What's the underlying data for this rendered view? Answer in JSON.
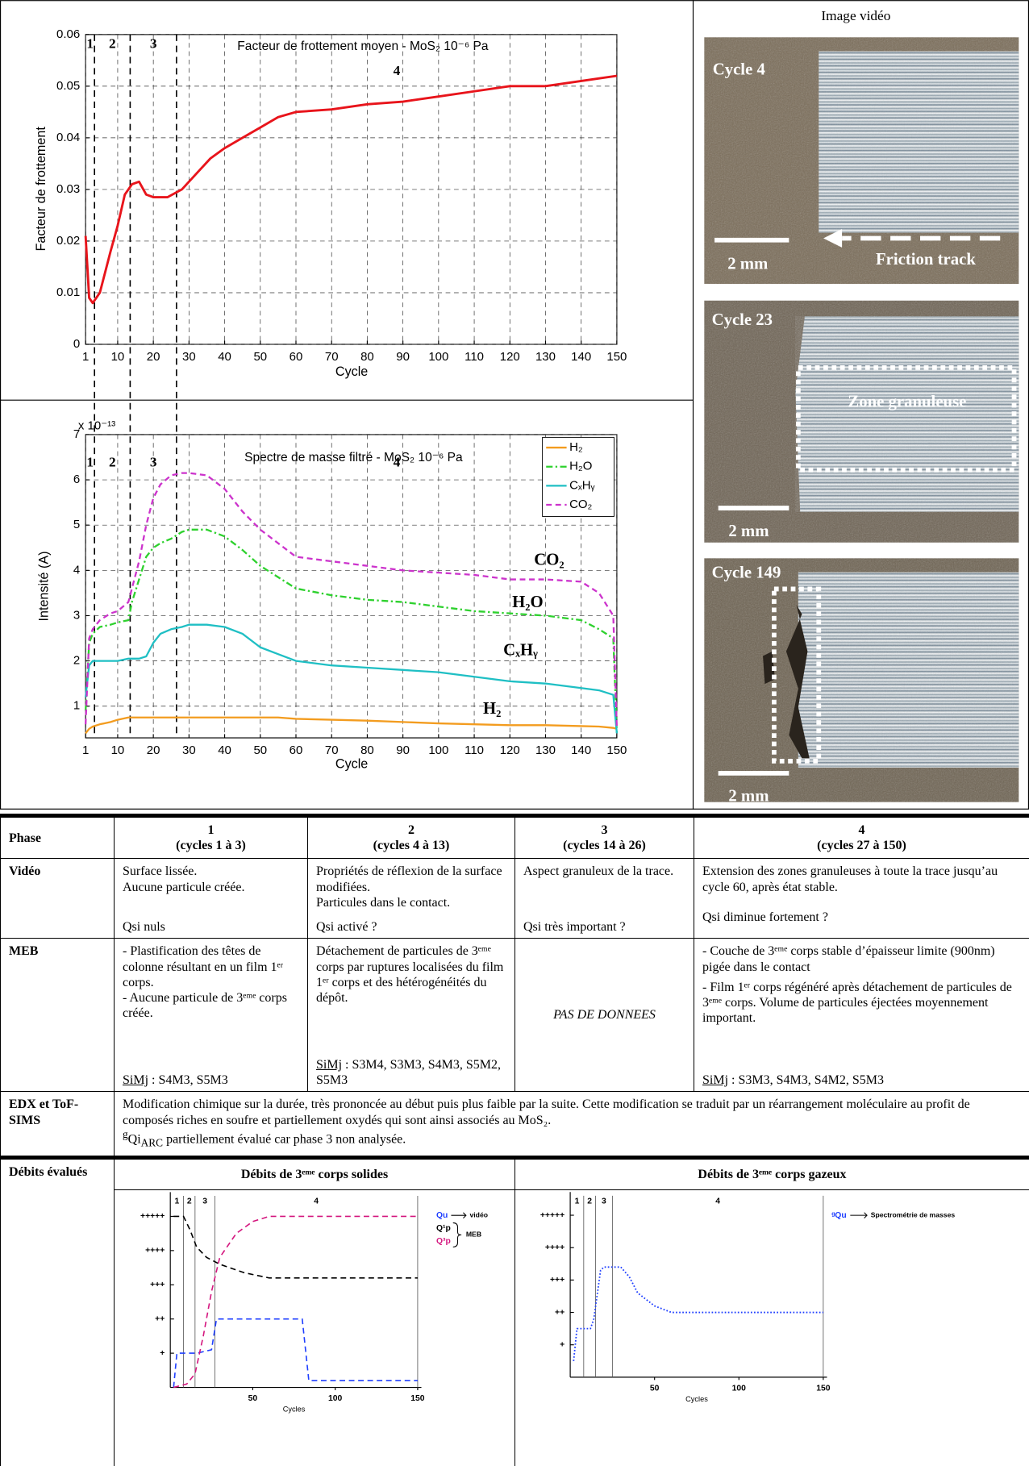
{
  "chart_data": [
    {
      "type": "line",
      "title": "Facteur de frottement moyen - MoS₂ 10⁻⁶ Pa",
      "xlabel": "Cycle",
      "ylabel": "Facteur de frottement",
      "xlim": [
        1,
        150
      ],
      "xticks": [
        1,
        10,
        20,
        30,
        40,
        50,
        60,
        70,
        80,
        90,
        100,
        110,
        120,
        130,
        140,
        150
      ],
      "ylim": [
        0,
        0.06
      ],
      "yticks": [
        0,
        0.01,
        0.02,
        0.03,
        0.04,
        0.05,
        0.06
      ],
      "grid": true,
      "phase_boundaries": [
        3.5,
        13.5,
        26.5
      ],
      "phase_labels": [
        "1",
        "2",
        "3",
        "4"
      ],
      "x": [
        1,
        2,
        3,
        5,
        8,
        10,
        12,
        14,
        16,
        18,
        20,
        24,
        28,
        32,
        36,
        40,
        45,
        50,
        55,
        60,
        70,
        80,
        90,
        100,
        110,
        120,
        130,
        140,
        150
      ],
      "values": [
        0.021,
        0.009,
        0.008,
        0.01,
        0.018,
        0.023,
        0.029,
        0.031,
        0.0315,
        0.029,
        0.0285,
        0.0285,
        0.03,
        0.033,
        0.036,
        0.038,
        0.04,
        0.042,
        0.044,
        0.045,
        0.0455,
        0.0465,
        0.047,
        0.048,
        0.049,
        0.05,
        0.05,
        0.051,
        0.052
      ],
      "color": "#e8141b"
    },
    {
      "type": "line",
      "title": "Spectre de masse filtré - MoS₂ 10⁻⁶ Pa",
      "multiplier": "x 10⁻¹³",
      "xlabel": "Cycle",
      "ylabel": "Intensité (A)",
      "xlim": [
        1,
        150
      ],
      "xticks": [
        1,
        10,
        20,
        30,
        40,
        50,
        60,
        70,
        80,
        90,
        100,
        110,
        120,
        130,
        140,
        150
      ],
      "ylim": [
        0.3,
        7
      ],
      "yticks": [
        1,
        2,
        3,
        4,
        5,
        6,
        7
      ],
      "grid": true,
      "legend": "upper right",
      "phase_labels": [
        "1",
        "2",
        "3",
        "4"
      ],
      "x": [
        1,
        2,
        3,
        5,
        8,
        10,
        13,
        14,
        16,
        18,
        20,
        22,
        25,
        28,
        30,
        35,
        40,
        45,
        50,
        55,
        60,
        70,
        80,
        90,
        100,
        110,
        120,
        130,
        140,
        145,
        149,
        150
      ],
      "series": [
        {
          "name": "H₂",
          "color": "#f39c1f",
          "dash": "solid",
          "values": [
            0.4,
            0.5,
            0.55,
            0.6,
            0.65,
            0.7,
            0.75,
            0.75,
            0.75,
            0.75,
            0.75,
            0.75,
            0.75,
            0.75,
            0.75,
            0.75,
            0.75,
            0.75,
            0.75,
            0.75,
            0.72,
            0.7,
            0.68,
            0.65,
            0.62,
            0.6,
            0.58,
            0.58,
            0.56,
            0.55,
            0.52,
            0.5
          ]
        },
        {
          "name": "H₂O",
          "color": "#2ed12e",
          "dash": "dashdot",
          "values": [
            0.9,
            2.4,
            2.6,
            2.75,
            2.8,
            2.85,
            2.9,
            3.3,
            3.8,
            4.3,
            4.5,
            4.6,
            4.7,
            4.85,
            4.9,
            4.9,
            4.75,
            4.45,
            4.1,
            3.85,
            3.6,
            3.45,
            3.35,
            3.3,
            3.2,
            3.1,
            3.05,
            3.0,
            2.9,
            2.7,
            2.5,
            0.4
          ]
        },
        {
          "name": "CₓHᵧ",
          "color": "#1fbfc4",
          "dash": "solid",
          "values": [
            1.2,
            1.9,
            2.0,
            2.0,
            2.0,
            2.0,
            2.05,
            2.05,
            2.05,
            2.1,
            2.4,
            2.6,
            2.7,
            2.75,
            2.8,
            2.8,
            2.75,
            2.6,
            2.3,
            2.15,
            2.0,
            1.9,
            1.85,
            1.8,
            1.75,
            1.65,
            1.55,
            1.5,
            1.4,
            1.35,
            1.25,
            0.4
          ]
        },
        {
          "name": "CO₂",
          "color": "#cc33cc",
          "dash": "dashed",
          "values": [
            0.6,
            2.5,
            2.7,
            2.9,
            3.05,
            3.1,
            3.3,
            3.6,
            4.2,
            5.0,
            5.6,
            5.9,
            6.1,
            6.15,
            6.15,
            6.1,
            5.8,
            5.3,
            4.9,
            4.6,
            4.3,
            4.2,
            4.1,
            4.0,
            3.95,
            3.9,
            3.8,
            3.8,
            3.75,
            3.5,
            3.0,
            0.5
          ]
        }
      ]
    },
    {
      "type": "line",
      "xlabel": "Cycles",
      "xlim": [
        0,
        150
      ],
      "xticks": [
        50,
        100,
        150
      ],
      "ylim": [
        0,
        5.6
      ],
      "yticks": [
        {
          "value": 1,
          "label": "+"
        },
        {
          "value": 2,
          "label": "++"
        },
        {
          "value": 3,
          "label": "+++"
        },
        {
          "value": 4,
          "label": "++++"
        },
        {
          "value": 5,
          "label": "+++++"
        }
      ],
      "grid": false,
      "legend": "upper right",
      "phase_boundaries": [
        8,
        15,
        27,
        150
      ],
      "phase_labels": [
        "1",
        "2",
        "3",
        "4"
      ],
      "legend_annotations": [
        "vidéo",
        "MEB"
      ],
      "series": [
        {
          "name": "Qu",
          "color": "#1f3fff",
          "dash": "dashed",
          "x": [
            2,
            4,
            12,
            16,
            25,
            28,
            30,
            80,
            84,
            150
          ],
          "values": [
            0,
            1,
            1,
            1,
            1.1,
            2,
            2,
            2,
            0.2,
            0.2
          ]
        },
        {
          "name": "Q¹p",
          "color": "#000000",
          "dash": "dashed",
          "x": [
            2,
            8,
            12,
            16,
            22,
            30,
            45,
            60,
            150
          ],
          "values": [
            5,
            5,
            4.6,
            4.1,
            3.8,
            3.6,
            3.35,
            3.2,
            3.2
          ]
        },
        {
          "name": "Q³p",
          "color": "#d4177f",
          "dash": "dashed",
          "x": [
            2,
            10,
            15,
            20,
            25,
            30,
            40,
            50,
            60,
            150
          ],
          "values": [
            0,
            0.1,
            0.4,
            1.5,
            2.8,
            3.8,
            4.5,
            4.85,
            5,
            5
          ]
        }
      ]
    },
    {
      "type": "line",
      "xlabel": "Cycles",
      "xlim": [
        0,
        150
      ],
      "xticks": [
        50,
        100,
        150
      ],
      "ylim": [
        0,
        5.6
      ],
      "yticks": [
        {
          "value": 1,
          "label": "+"
        },
        {
          "value": 2,
          "label": "++"
        },
        {
          "value": 3,
          "label": "+++"
        },
        {
          "value": 4,
          "label": "++++"
        },
        {
          "value": 5,
          "label": "+++++"
        }
      ],
      "grid": false,
      "legend": "upper right",
      "phase_boundaries": [
        8,
        15,
        25,
        150
      ],
      "phase_labels": [
        "1",
        "2",
        "3",
        "4"
      ],
      "legend_annotations": [
        "Spectrométrie de masses"
      ],
      "series": [
        {
          "name": "ᵍQu",
          "color": "#1f3fff",
          "dash": "dotted",
          "x": [
            2,
            4,
            12,
            14,
            18,
            20,
            30,
            35,
            40,
            50,
            60,
            150
          ],
          "values": [
            0.5,
            1.5,
            1.5,
            1.8,
            3.3,
            3.4,
            3.4,
            3.1,
            2.6,
            2.2,
            2,
            2
          ]
        }
      ]
    }
  ],
  "video": {
    "title": "Image vidéo",
    "frames": [
      {
        "cycle": "Cycle 4",
        "scale": "2 mm",
        "note": "Friction track"
      },
      {
        "cycle": "Cycle 23",
        "scale": "2 mm",
        "note": "Zone granuleuse"
      },
      {
        "cycle": "Cycle 149",
        "scale": "2 mm"
      }
    ]
  },
  "table": {
    "phase": {
      "label": "Phase",
      "cols": [
        {
          "number": "1",
          "range": "(cycles 1 à 3)"
        },
        {
          "number": "2",
          "range": "(cycles 4 à 13)"
        },
        {
          "number": "3",
          "range": "(cycles 14 à 26)"
        },
        {
          "number": "4",
          "range": "(cycles 27 à 150)"
        }
      ]
    },
    "video": {
      "label": "Vidéo",
      "cols": [
        {
          "text": [
            "Surface lissée.",
            "Aucune particule créée."
          ],
          "q": "Qsi nuls"
        },
        {
          "text": [
            "Propriétés de réflexion de la surface modifiées.",
            "Particules dans le contact."
          ],
          "q": "Qsi activé ?"
        },
        {
          "text": [
            "Aspect granuleux de la trace."
          ],
          "q": "Qsi très important ?"
        },
        {
          "text": [
            "Extension des zones granuleuses à toute la trace jusqu’au cycle 60, après état stable."
          ],
          "q": "Qsi diminue fortement ?"
        }
      ]
    },
    "meb": {
      "label": "MEB",
      "cols": [
        {
          "text": [
            "- Plastification des têtes de colonne résultant en un film 1ᵉʳ corps.",
            "- Aucune particule de 3ᵉᵐᵉ corps créée."
          ],
          "simj_label": "SiMj",
          "simj": ": S4M3, S5M3"
        },
        {
          "text": [
            "Détachement de particules de 3ᵉᵐᵉ corps par ruptures localisées du film 1ᵉʳ corps et des hétérogénéités du dépôt."
          ],
          "simj_label": "SiMj",
          "simj": ": S3M4, S3M3, S4M3, S5M2, S5M3"
        },
        {
          "text": [
            "PAS DE DONNEES"
          ]
        },
        {
          "text": [
            "- Couche de 3ᵉᵐᵉ corps stable d’épaisseur limite (900nm)  pigée dans le contact",
            "- Film 1ᵉʳ corps régénéré après détachement de particules de 3ᵉᵐᵉ corps. Volume de particules éjectées moyennement important."
          ],
          "simj_label": "SiMj",
          "simj": ": S3M3, S4M3, S4M2, S5M3"
        }
      ]
    },
    "edx": {
      "label": "EDX et ToF-SIMS",
      "text": "Modification chimique sur la durée, très prononcée au début puis plus faible par la suite. Cette modification se traduit par un réarrangement moléculaire au profit de composés riches en soufre et partiellement oxydés qui sont ainsi associés au MoS₂.",
      "note_sup": "g",
      "note_main": "Qi",
      "note_sub": "ARC",
      "note_rest": " partiellement évalué car phase 3 non analysée."
    },
    "debits": {
      "label": "Débits évalués",
      "solid": "Débits de 3ᵉᵐᵉ corps solides",
      "gas": "Débits de 3ᵉᵐᵉ corps gazeux"
    }
  }
}
